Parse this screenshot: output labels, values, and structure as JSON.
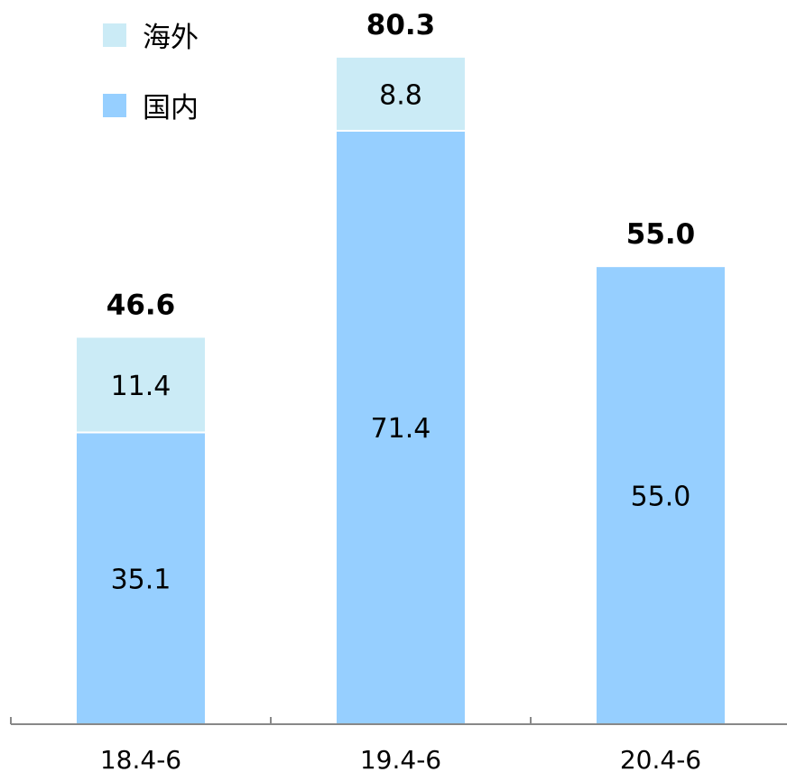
{
  "chart_data": {
    "type": "bar",
    "stacked": true,
    "categories": [
      "18.4-6",
      "19.4-6",
      "20.4-6"
    ],
    "series": [
      {
        "name": "国内",
        "values": [
          35.1,
          71.4,
          55.0
        ],
        "color": "#96cfff",
        "labels": [
          "35.1",
          "71.4",
          "55.0"
        ]
      },
      {
        "name": "海外",
        "values": [
          11.4,
          8.8,
          0
        ],
        "color": "#cbebf6",
        "labels": [
          "11.4",
          "8.8",
          ""
        ]
      }
    ],
    "totals": [
      46.6,
      80.3,
      55.0
    ],
    "total_labels": [
      "46.6",
      "80.3",
      "55.0"
    ],
    "legend": [
      {
        "name": "海外",
        "color": "#cbebf6"
      },
      {
        "name": "国内",
        "color": "#96cfff"
      }
    ],
    "legend_position": "top-left",
    "ylim": [
      0,
      80.3
    ],
    "grid": false,
    "axis_color": "#888888"
  }
}
